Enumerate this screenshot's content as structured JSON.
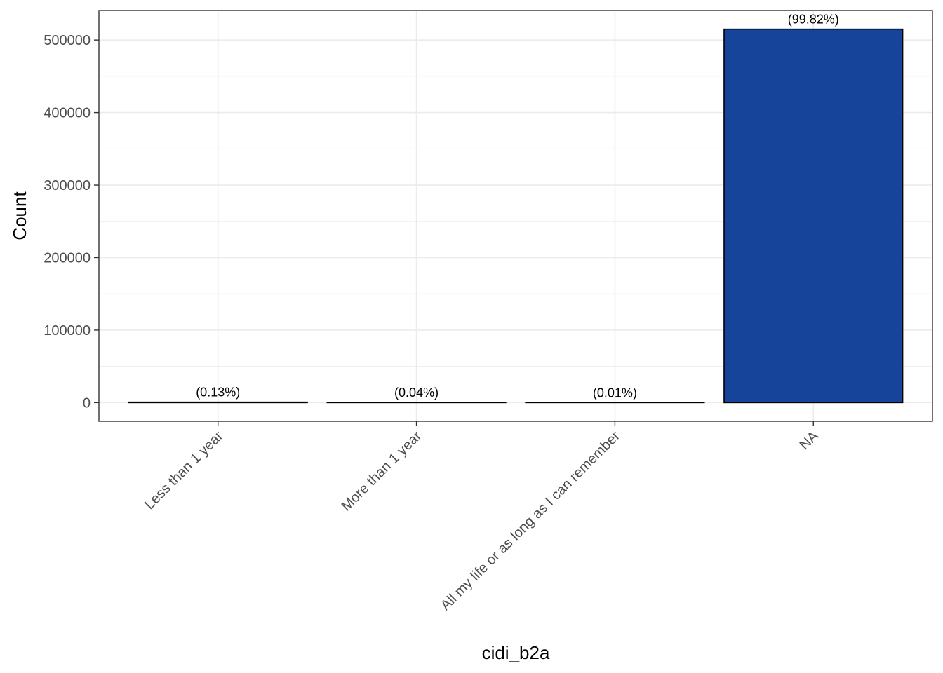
{
  "chart_data": {
    "type": "bar",
    "categories": [
      "Less than 1 year",
      "More than 1 year",
      "All my life or as long as I can remember",
      "NA"
    ],
    "values": [
      670,
      210,
      50,
      515000
    ],
    "data_labels": [
      "(0.13%)",
      "(0.04%)",
      "(0.01%)",
      "(99.82%)"
    ],
    "xlabel": "cidi_b2a",
    "ylabel": "Count",
    "ylim": [
      -25750,
      540750
    ],
    "yticks": [
      0,
      100000,
      200000,
      300000,
      400000,
      500000
    ],
    "ytick_labels": [
      "0",
      "100000",
      "200000",
      "300000",
      "400000",
      "500000"
    ],
    "grid": true,
    "bar_fill": "#17449b",
    "bar_stroke": "#000000",
    "grid_color": "#ebebeb",
    "panel_border": "#333333"
  }
}
